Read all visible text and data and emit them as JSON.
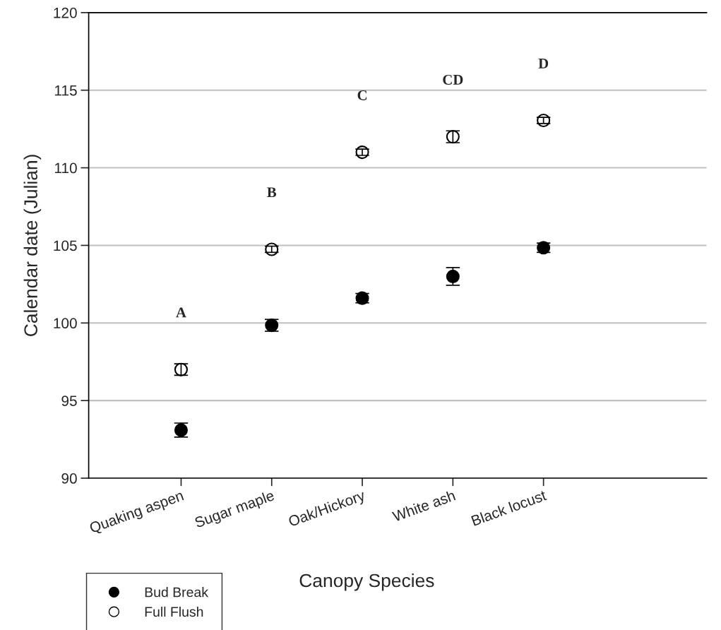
{
  "chart_data": {
    "type": "scatter",
    "xlabel": "Canopy Species",
    "ylabel": "Calendar date (Julian)",
    "categories": [
      "Quaking aspen",
      "Sugar maple",
      "Oak/Hickory",
      "White ash",
      "Black locust"
    ],
    "series": [
      {
        "name": "Bud Break",
        "color": "#000000",
        "values": [
          93.1,
          99.85,
          101.6,
          103.0,
          104.85
        ],
        "errors": [
          0.45,
          0.38,
          0.3,
          0.57,
          0.3
        ]
      },
      {
        "name": "Full Flush",
        "color": "#ffffff",
        "values": [
          97.0,
          104.75,
          111.0,
          112.0,
          113.05
        ],
        "errors": [
          0.37,
          0.2,
          0.2,
          0.38,
          0.2
        ]
      }
    ],
    "annotations": [
      "A",
      "B",
      "C",
      "CD",
      "D"
    ],
    "ylim": [
      90,
      120
    ],
    "yticks": [
      90,
      95,
      100,
      105,
      110,
      115,
      120
    ],
    "grid": "y",
    "legend": "bottom left",
    "marker": "circle"
  }
}
